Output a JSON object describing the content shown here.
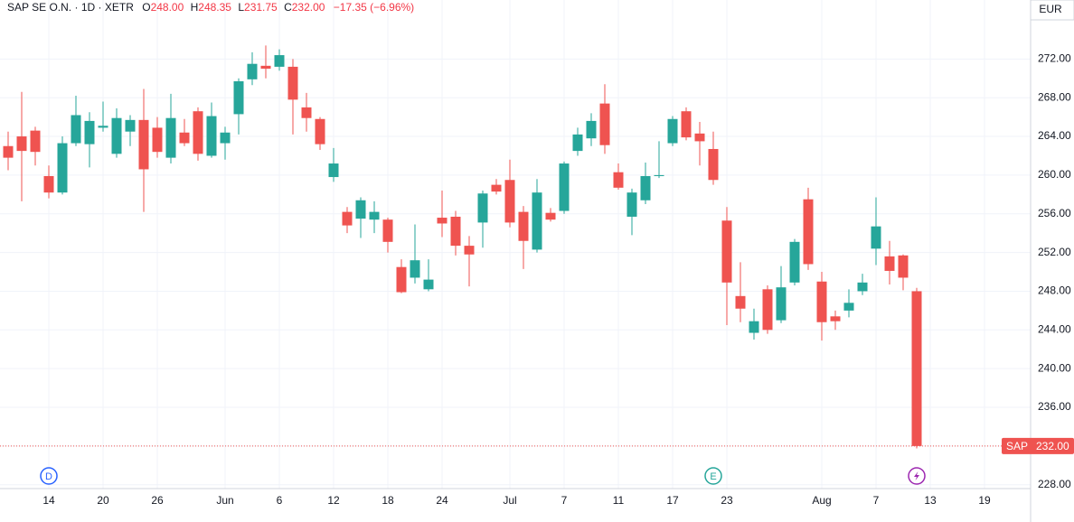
{
  "chart_data": {
    "type": "candlestick",
    "title": "SAP SE O.N.",
    "interval": "1D",
    "exchange": "XETR",
    "header_ohlc": [
      {
        "label": "O",
        "value": "248.00"
      },
      {
        "label": "H",
        "value": "248.35"
      },
      {
        "label": "L",
        "value": "231.75"
      },
      {
        "label": "C",
        "value": "232.00"
      }
    ],
    "change": "−17.35 (−6.96%)",
    "currency": "EUR",
    "up_color": "#26a69a",
    "down_color": "#ef5350",
    "grid": true,
    "categories": [
      null,
      null,
      null,
      "14",
      null,
      null,
      null,
      "20",
      null,
      null,
      null,
      "26",
      null,
      null,
      null,
      null,
      "Jun",
      null,
      null,
      null,
      "6",
      null,
      null,
      null,
      "12",
      null,
      null,
      null,
      "18",
      null,
      null,
      null,
      "24",
      null,
      null,
      null,
      null,
      "Jul",
      null,
      null,
      null,
      "7",
      null,
      null,
      null,
      "11",
      null,
      null,
      null,
      "17",
      null,
      null,
      null,
      "23",
      null,
      null,
      null,
      null,
      null,
      null,
      "Aug",
      null,
      null,
      null,
      "7",
      null,
      null,
      null,
      "13",
      null,
      null,
      null,
      "19"
    ],
    "open": [
      263.0,
      264.0,
      264.6,
      259.9,
      258.2,
      263.3,
      263.2,
      264.9,
      262.2,
      264.5,
      265.7,
      264.9,
      261.8,
      264.4,
      266.6,
      262.0,
      263.3,
      266.3,
      269.9,
      271.3,
      271.2,
      271.2,
      267.0,
      265.8,
      259.8,
      256.2,
      255.5,
      255.4,
      255.4,
      250.5,
      249.4,
      248.2,
      255.6,
      255.7,
      252.7,
      255.1,
      259.0,
      259.5,
      256.2,
      252.3,
      256.1,
      256.3,
      262.5,
      263.8,
      267.4,
      260.3,
      255.7,
      257.4,
      259.9,
      263.3,
      266.6,
      264.3,
      262.7,
      255.3,
      247.5,
      243.7,
      248.2,
      245.0,
      248.9,
      257.5,
      249.0,
      245.4,
      246.0,
      248.0,
      252.4,
      251.6,
      251.7,
      248.0,
      null,
      null,
      null,
      null,
      null
    ],
    "high": [
      264.5,
      268.6,
      265.0,
      261.0,
      264.0,
      268.2,
      266.5,
      267.6,
      266.9,
      266.2,
      268.9,
      266.0,
      268.4,
      265.8,
      267.0,
      267.5,
      265.0,
      270.0,
      272.7,
      273.4,
      273.0,
      272.0,
      268.5,
      266.0,
      262.8,
      256.7,
      257.7,
      257.3,
      255.6,
      251.3,
      254.9,
      251.3,
      258.4,
      256.3,
      253.7,
      258.4,
      259.6,
      261.6,
      256.8,
      259.6,
      256.6,
      261.4,
      264.9,
      266.4,
      269.4,
      261.2,
      258.6,
      261.3,
      263.5,
      266.1,
      267.0,
      265.5,
      264.5,
      256.7,
      251.0,
      246.2,
      248.6,
      250.6,
      253.4,
      258.7,
      250.0,
      246.0,
      248.2,
      249.8,
      257.7,
      253.2,
      251.8,
      248.35,
      null,
      null,
      null,
      null,
      null
    ],
    "low": [
      260.5,
      257.3,
      261.0,
      257.6,
      258.0,
      263.0,
      260.8,
      264.5,
      261.8,
      263.0,
      256.2,
      261.8,
      261.2,
      263.0,
      261.5,
      261.8,
      261.6,
      264.2,
      269.3,
      270.0,
      270.8,
      264.2,
      264.5,
      262.6,
      259.3,
      254.0,
      253.5,
      254.0,
      252.0,
      247.8,
      248.8,
      248.0,
      253.6,
      251.7,
      248.5,
      252.5,
      258.0,
      254.6,
      250.3,
      252.0,
      255.2,
      256.0,
      262.0,
      263.0,
      262.2,
      258.5,
      253.8,
      257.0,
      259.7,
      263.0,
      263.6,
      261.0,
      259.0,
      244.5,
      244.8,
      243.0,
      243.6,
      244.7,
      248.6,
      250.2,
      242.9,
      244.0,
      245.3,
      247.6,
      250.7,
      248.7,
      248.1,
      231.75,
      null,
      null,
      null,
      null,
      null
    ],
    "close": [
      261.8,
      262.5,
      262.4,
      258.2,
      263.3,
      266.2,
      265.6,
      265.1,
      265.9,
      265.7,
      260.6,
      262.4,
      265.9,
      263.3,
      262.2,
      266.1,
      264.4,
      269.7,
      271.5,
      271.0,
      272.4,
      267.8,
      265.9,
      263.2,
      261.2,
      254.8,
      257.4,
      256.2,
      253.1,
      247.9,
      251.2,
      249.2,
      255.0,
      252.7,
      251.8,
      258.1,
      258.3,
      255.1,
      253.2,
      258.2,
      255.4,
      261.2,
      264.2,
      265.6,
      263.1,
      258.7,
      258.2,
      259.9,
      260.0,
      265.8,
      263.9,
      263.5,
      259.5,
      248.9,
      246.2,
      244.9,
      244.0,
      248.4,
      253.1,
      250.8,
      244.8,
      244.9,
      246.8,
      248.9,
      254.7,
      250.1,
      249.4,
      232.0,
      null,
      null,
      null,
      null,
      null
    ],
    "last_price": {
      "name": "SAP",
      "value": 232.0,
      "label": "232.00"
    },
    "events": [
      {
        "label": "D",
        "at": 3
      },
      {
        "label": "E",
        "at": 52
      }
    ],
    "ylim": [
      227.6,
      278.1
    ],
    "yticks": [
      {
        "value": 228,
        "label": "228.00"
      },
      {
        "value": 232,
        "label": "232.00"
      },
      {
        "value": 236,
        "label": "236.00"
      },
      {
        "value": 240,
        "label": "240.00"
      },
      {
        "value": 244,
        "label": "244.00"
      },
      {
        "value": 248,
        "label": "248.00"
      },
      {
        "value": 252,
        "label": "252.00"
      },
      {
        "value": 256,
        "label": "256.00"
      },
      {
        "value": 260,
        "label": "260.00"
      },
      {
        "value": 264,
        "label": "264.00"
      },
      {
        "value": 268,
        "label": "268.00"
      },
      {
        "value": 272,
        "label": "272.00"
      }
    ]
  }
}
